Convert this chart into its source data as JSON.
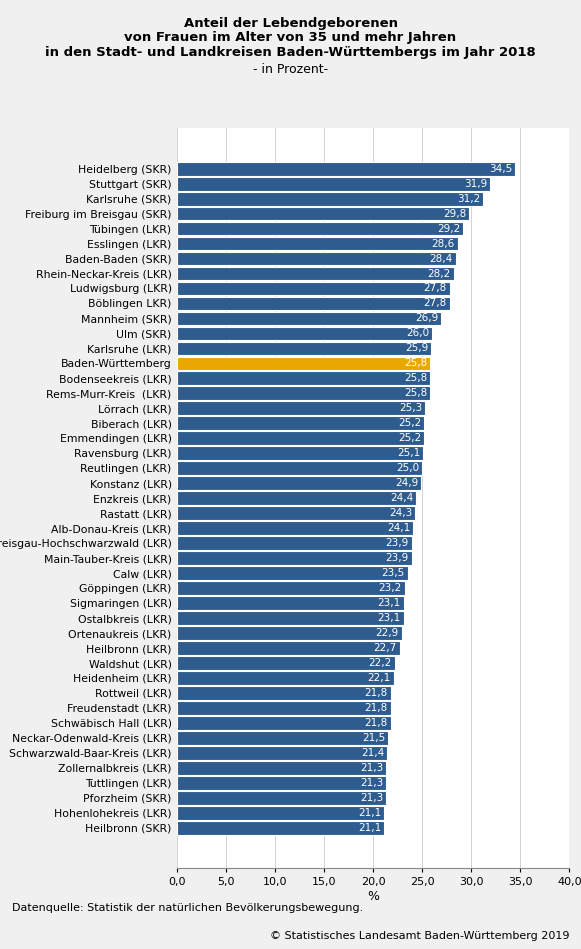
{
  "title_lines": [
    "Anteil der Lebendgeborenen",
    "von Frauen im Alter von 35 und mehr Jahren",
    "in den Stadt- und Landkreisen Baden-Württembergs im Jahr 2018",
    "- in Prozent-"
  ],
  "categories": [
    "Heidelberg (SKR)",
    "Stuttgart (SKR)",
    "Karlsruhe (SKR)",
    "Freiburg im Breisgau (SKR)",
    "Tübingen (LKR)",
    "Esslingen (LKR)",
    "Baden-Baden (SKR)",
    "Rhein-Neckar-Kreis (LKR)",
    "Ludwigsburg (LKR)",
    "Böblingen LKR)",
    "Mannheim (SKR)",
    "Ulm (SKR)",
    "Karlsruhe (LKR)",
    "Baden-Württemberg",
    "Bodenseekreis (LKR)",
    "Rems-Murr-Kreis  (LKR)",
    "Lörrach (LKR)",
    "Biberach (LKR)",
    "Emmendingen (LKR)",
    "Ravensburg (LKR)",
    "Reutlingen (LKR)",
    "Konstanz (LKR)",
    "Enzkreis (LKR)",
    "Rastatt (LKR)",
    "Alb-Donau-Kreis (LKR)",
    "Breisgau-Hochschwarzwald (LKR)",
    "Main-Tauber-Kreis (LKR)",
    "Calw (LKR)",
    "Göppingen (LKR)",
    "Sigmaringen (LKR)",
    "Ostalbkreis (LKR)",
    "Ortenaukreis (LKR)",
    "Heilbronn (LKR)",
    "Waldshut (LKR)",
    "Heidenheim (LKR)",
    "Rottweil (LKR)",
    "Freudenstadt (LKR)",
    "Schwäbisch Hall (LKR)",
    "Neckar-Odenwald-Kreis (LKR)",
    "Schwarzwald-Baar-Kreis (LKR)",
    "Zollernalbkreis (LKR)",
    "Tuttlingen (LKR)",
    "Pforzheim (SKR)",
    "Hohenlohekreis (LKR)",
    "Heilbronn (SKR)"
  ],
  "values": [
    34.5,
    31.9,
    31.2,
    29.8,
    29.2,
    28.6,
    28.4,
    28.2,
    27.8,
    27.8,
    26.9,
    26.0,
    25.9,
    25.8,
    25.8,
    25.8,
    25.3,
    25.2,
    25.2,
    25.1,
    25.0,
    24.9,
    24.4,
    24.3,
    24.1,
    23.9,
    23.9,
    23.5,
    23.2,
    23.1,
    23.1,
    22.9,
    22.7,
    22.2,
    22.1,
    21.8,
    21.8,
    21.8,
    21.5,
    21.4,
    21.3,
    21.3,
    21.3,
    21.1,
    21.1
  ],
  "highlight_index": 13,
  "bar_color": "#2E5C8E",
  "highlight_color": "#E8A800",
  "bg_color": "#F0F0F0",
  "plot_bg_color": "#FFFFFF",
  "xlabel": "%",
  "xlim": [
    0,
    40
  ],
  "xticks": [
    0,
    5,
    10,
    15,
    20,
    25,
    30,
    35,
    40
  ],
  "xtick_labels": [
    "0,0",
    "5,0",
    "10,0",
    "15,0",
    "20,0",
    "25,0",
    "30,0",
    "35,0",
    "40,0"
  ],
  "source_text": "Datenquelle: Statistik der natürlichen Bevölkerungsbewegung.",
  "copyright_text": "© Statistisches Landesamt Baden-Württemberg 2019",
  "value_label_color": "#FFFFFF",
  "grid_color": "#CCCCCC"
}
